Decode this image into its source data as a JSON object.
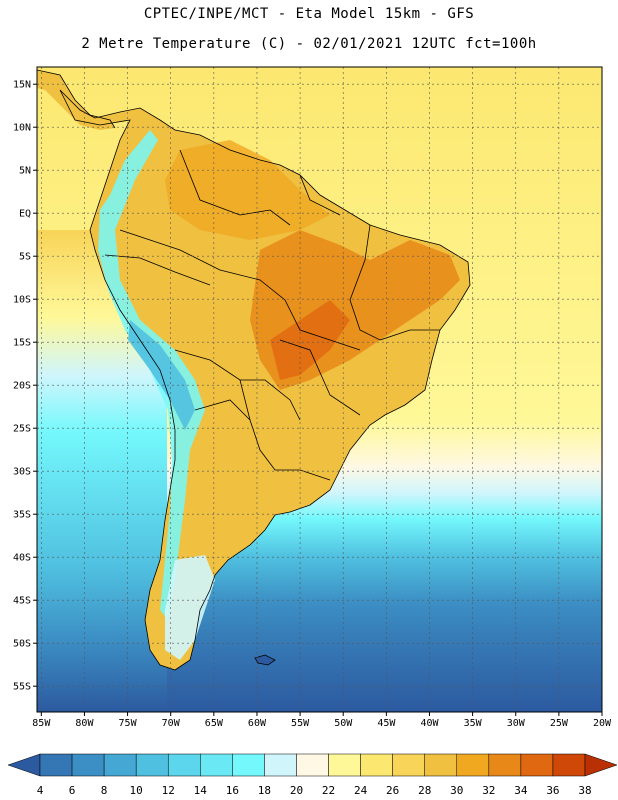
{
  "header": {
    "line1": "CPTEC/INPE/MCT -  Eta Model 15km - GFS",
    "line2": "2 Metre Temperature (C) - 02/01/2021 12UTC fct=100h"
  },
  "map": {
    "lat_ticks": [
      "15N",
      "10N",
      "5N",
      "EQ",
      "5S",
      "10S",
      "15S",
      "20S",
      "25S",
      "30S",
      "35S",
      "40S",
      "45S",
      "50S",
      "55S"
    ],
    "lon_ticks": [
      "85W",
      "80W",
      "75W",
      "70W",
      "65W",
      "60W",
      "55W",
      "50W",
      "45W",
      "40W",
      "35W",
      "30W",
      "25W",
      "20W"
    ],
    "lat_range": [
      17,
      -58
    ],
    "lon_range": [
      -85.5,
      -20
    ]
  },
  "colorbar": {
    "labels": [
      "4",
      "6",
      "8",
      "10",
      "12",
      "14",
      "16",
      "18",
      "20",
      "22",
      "24",
      "26",
      "28",
      "30",
      "32",
      "34",
      "36",
      "38"
    ],
    "colors": [
      "#2c5aa0",
      "#3577b4",
      "#3c8fc4",
      "#45a8d4",
      "#50c0e0",
      "#5cd6ec",
      "#6ae8f4",
      "#74f8fc",
      "#d0f6fc",
      "#fff8e4",
      "#fff898",
      "#fce870",
      "#f8d458",
      "#f0c040",
      "#f0a820",
      "#e88818",
      "#e06810",
      "#d04808",
      "#b83004"
    ]
  }
}
